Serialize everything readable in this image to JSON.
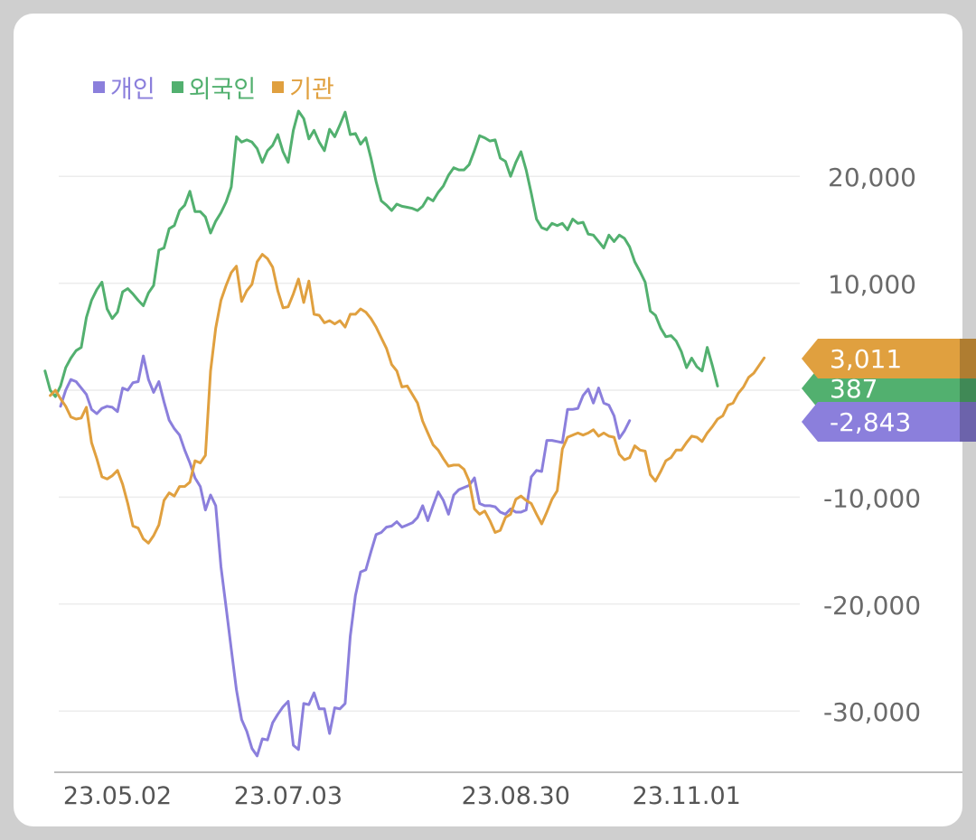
{
  "chart_data": {
    "type": "line",
    "title": "",
    "xlabel": "",
    "ylabel": "",
    "ylim": [
      -35000,
      29000
    ],
    "y_ticks": [
      "20,000",
      "10,000",
      "-10,000",
      "-20,000",
      "-30,000"
    ],
    "y_tick_values": [
      20000,
      10000,
      -10000,
      -20000,
      -30000
    ],
    "x_ticks": [
      "23.05.02",
      "23.07.03",
      "23.08.30",
      "23.11.01"
    ],
    "x_tick_index": [
      11,
      44,
      88,
      121
    ],
    "grid": true,
    "legend_position": "top-left",
    "series": [
      {
        "name": "개인",
        "color": "#8b7fdc",
        "end_label": "-2,843",
        "values": [
          -1500,
          0,
          1000,
          800,
          200,
          -400,
          -1800,
          -2200,
          -1700,
          -1500,
          -1600,
          -2000,
          200,
          0,
          700,
          800,
          3200,
          1000,
          -200,
          800,
          -1100,
          -2800,
          -3600,
          -4200,
          -5600,
          -6800,
          -8200,
          -9000,
          -11200,
          -9800,
          -10800,
          -16500,
          -20300,
          -24200,
          -28000,
          -30800,
          -31900,
          -33500,
          -34200,
          -32600,
          -32700,
          -31100,
          -30300,
          -29600,
          -29100,
          -33200,
          -33600,
          -29300,
          -29400,
          -28300,
          -29800,
          -29800,
          -32100,
          -29700,
          -29800,
          -29300,
          -23000,
          -19200,
          -17000,
          -16800,
          -15100,
          -13500,
          -13300,
          -12800,
          -12700,
          -12300,
          -12800,
          -12600,
          -12400,
          -11900,
          -10800,
          -12200,
          -10800,
          -9500,
          -10300,
          -11600,
          -9800,
          -9300,
          -9100,
          -8900,
          -8200,
          -10600,
          -10800,
          -10800,
          -10900,
          -11400,
          -11600,
          -11100,
          -11400,
          -11400,
          -11200,
          -8100,
          -7500,
          -7600,
          -4700,
          -4700,
          -4800,
          -4900,
          -1800,
          -1800,
          -1700,
          -500,
          100,
          -1200,
          200,
          -1200,
          -1400,
          -2400,
          -4500,
          -3800,
          -2843
        ],
        "x_offset": 0
      },
      {
        "name": "외국인",
        "color": "#52b06f",
        "end_label": "387",
        "values": [
          1800,
          0,
          -600,
          400,
          2100,
          3000,
          3700,
          4000,
          6800,
          8400,
          9400,
          10100,
          7600,
          6700,
          7300,
          9200,
          9500,
          9000,
          8400,
          7900,
          9100,
          9800,
          13100,
          13300,
          15100,
          15400,
          16800,
          17300,
          18600,
          16700,
          16700,
          16200,
          14700,
          15800,
          16600,
          17600,
          19000,
          23700,
          23200,
          23400,
          23200,
          22600,
          21300,
          22400,
          22900,
          23900,
          22300,
          21300,
          24300,
          26100,
          25400,
          23500,
          24300,
          23200,
          22400,
          24400,
          23700,
          24800,
          26000,
          23900,
          24000,
          23000,
          23600,
          21700,
          19500,
          17700,
          17300,
          16800,
          17400,
          17200,
          17100,
          17000,
          16800,
          17200,
          18000,
          17700,
          18500,
          19100,
          20100,
          20800,
          20600,
          20600,
          21100,
          22400,
          23800,
          23600,
          23300,
          23400,
          21700,
          21400,
          20000,
          21300,
          22300,
          20600,
          18400,
          16000,
          15200,
          15000,
          15600,
          15400,
          15600,
          15000,
          16000,
          15600,
          15700,
          14600,
          14500,
          13900,
          13300,
          14500,
          13900,
          14500,
          14200,
          13400,
          12000,
          11100,
          10100,
          7400,
          7000,
          5800,
          5000,
          5100,
          4600,
          3600,
          2100,
          3000,
          2200,
          1800,
          4000,
          2300,
          387
        ],
        "x_offset": -3
      },
      {
        "name": "기관",
        "color": "#e0a03f",
        "end_label": "3,011",
        "values": [
          -500,
          0,
          -800,
          -1500,
          -2500,
          -2700,
          -2600,
          -1600,
          -4900,
          -6400,
          -8100,
          -8300,
          -8000,
          -7500,
          -8800,
          -10600,
          -12700,
          -12900,
          -13900,
          -14300,
          -13600,
          -12600,
          -10300,
          -9600,
          -9900,
          -9000,
          -9000,
          -8600,
          -6600,
          -6800,
          -6100,
          1800,
          5800,
          8400,
          9800,
          11000,
          11600,
          8300,
          9300,
          9900,
          12000,
          12700,
          12300,
          11500,
          9300,
          7700,
          7800,
          9000,
          10400,
          8200,
          10200,
          7100,
          7000,
          6300,
          6500,
          6200,
          6500,
          5900,
          7100,
          7100,
          7600,
          7300,
          6700,
          5900,
          4900,
          3900,
          2400,
          1800,
          300,
          400,
          -400,
          -1200,
          -2900,
          -4000,
          -5100,
          -5600,
          -6400,
          -7100,
          -7000,
          -7000,
          -7400,
          -8500,
          -11100,
          -11600,
          -11300,
          -12200,
          -13300,
          -13100,
          -11900,
          -11600,
          -10200,
          -9900,
          -10300,
          -10600,
          -11600,
          -12500,
          -11400,
          -10200,
          -9400,
          -5500,
          -4400,
          -4200,
          -4000,
          -4200,
          -4000,
          -3700,
          -4300,
          -4000,
          -4300,
          -4400,
          -6000,
          -6500,
          -6300,
          -5200,
          -5600,
          -5700,
          -7900,
          -8500,
          -7600,
          -6600,
          -6300,
          -5600,
          -5600,
          -4900,
          -4300,
          -4400,
          -4800,
          -4000,
          -3400,
          -2700,
          -2400,
          -1400,
          -1200,
          -300,
          300,
          1200,
          1600,
          2300,
          3011
        ],
        "x_offset": -2
      }
    ]
  }
}
